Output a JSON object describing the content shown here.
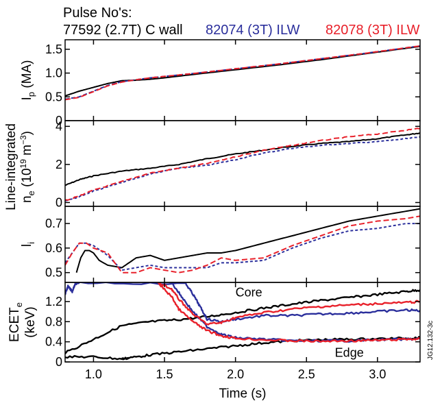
{
  "header": {
    "title": "Pulse No's:",
    "pulses": [
      {
        "label": "77592 (2.7T) C wall",
        "color": "#000000"
      },
      {
        "label": "82074 (3T) ILW",
        "color": "#2b2f9c"
      },
      {
        "label": "82078 (3T) ILW",
        "color": "#e8202a"
      }
    ]
  },
  "watermark": "JG12.132-3c",
  "chart_data": {
    "type": "line",
    "xlabel": "Time (s)",
    "xlim": [
      0.8,
      3.3
    ],
    "xticks": [
      "1.0",
      "1.5",
      "2.0",
      "2.5",
      "3.0"
    ],
    "xtick_values": [
      1.0,
      1.5,
      2.0,
      2.5,
      3.0
    ],
    "panels": [
      {
        "id": "ip",
        "ylabel_main": "I",
        "ylabel_sub": "p",
        "ylabel_unit": " (MA)",
        "ylim": [
          0,
          1.7
        ],
        "yticks": [
          "0",
          "0.5",
          "1.0",
          "1.5"
        ],
        "ytick_values": [
          0,
          0.5,
          1.0,
          1.5
        ],
        "series": [
          {
            "pulse": "77592",
            "color": "#000000",
            "dash": "",
            "x": [
              0.8,
              0.9,
              1.0,
              1.1,
              1.2,
              1.3,
              1.4,
              1.5,
              1.7,
              2.0,
              2.3,
              2.6,
              2.9,
              3.1,
              3.3
            ],
            "y": [
              0.52,
              0.62,
              0.7,
              0.78,
              0.84,
              0.85,
              0.87,
              0.9,
              0.97,
              1.07,
              1.17,
              1.28,
              1.4,
              1.48,
              1.56
            ]
          },
          {
            "pulse": "82074",
            "color": "#2b2f9c",
            "dash": "6,3",
            "x": [
              0.8,
              0.9,
              1.0,
              1.1,
              1.2,
              1.3,
              1.4,
              1.5,
              1.7,
              2.0,
              2.3,
              2.6,
              2.9,
              3.1,
              3.3
            ],
            "y": [
              0.45,
              0.5,
              0.62,
              0.74,
              0.82,
              0.86,
              0.9,
              0.93,
              0.99,
              1.09,
              1.19,
              1.3,
              1.41,
              1.49,
              1.57
            ]
          },
          {
            "pulse": "82078",
            "color": "#e8202a",
            "dash": "8,4",
            "x": [
              0.8,
              0.9,
              1.0,
              1.1,
              1.2,
              1.3,
              1.4,
              1.5,
              1.7,
              2.0,
              2.3,
              2.6,
              2.9,
              3.1,
              3.3
            ],
            "y": [
              0.44,
              0.49,
              0.61,
              0.73,
              0.81,
              0.86,
              0.9,
              0.93,
              0.99,
              1.09,
              1.19,
              1.3,
              1.41,
              1.49,
              1.57
            ]
          }
        ]
      },
      {
        "id": "ne",
        "ylabel_main": "n",
        "ylabel_sub": "e",
        "ylabel_unit": " (10",
        "ylabel_sup": "19",
        "ylabel_unit2": " m",
        "ylabel_sup2": "−3",
        "ylabel_close": ")",
        "ylabel_line1": "Line-integrated",
        "ylim": [
          -0.2,
          4.3
        ],
        "yticks": [
          "0",
          "2",
          "4"
        ],
        "ytick_values": [
          0,
          2,
          4
        ],
        "series": [
          {
            "pulse": "77592",
            "color": "#000000",
            "dash": "",
            "x": [
              0.8,
              0.9,
              1.0,
              1.2,
              1.4,
              1.6,
              1.8,
              2.0,
              2.2,
              2.4,
              2.6,
              2.8,
              3.0,
              3.2,
              3.3
            ],
            "y": [
              0.9,
              1.2,
              1.4,
              1.65,
              1.8,
              2.0,
              2.3,
              2.55,
              2.75,
              2.95,
              3.1,
              3.2,
              3.35,
              3.55,
              3.65
            ]
          },
          {
            "pulse": "82074",
            "color": "#2b2f9c",
            "dash": "4,3",
            "x": [
              0.8,
              0.9,
              1.0,
              1.2,
              1.4,
              1.6,
              1.8,
              2.0,
              2.2,
              2.4,
              2.6,
              2.8,
              3.0,
              3.2,
              3.3
            ],
            "y": [
              0.1,
              0.3,
              0.6,
              1.05,
              1.5,
              1.8,
              1.95,
              2.25,
              2.6,
              2.85,
              3.0,
              3.1,
              3.2,
              3.35,
              3.45
            ]
          },
          {
            "pulse": "82078",
            "color": "#e8202a",
            "dash": "8,4",
            "x": [
              0.8,
              0.9,
              1.0,
              1.2,
              1.4,
              1.6,
              1.8,
              2.0,
              2.2,
              2.4,
              2.6,
              2.8,
              3.0,
              3.2,
              3.3
            ],
            "y": [
              0.1,
              0.35,
              0.65,
              1.1,
              1.55,
              1.8,
              2.05,
              2.4,
              2.75,
              3.0,
              3.25,
              3.45,
              3.6,
              3.8,
              3.9
            ]
          }
        ]
      },
      {
        "id": "li",
        "ylabel_main": "l",
        "ylabel_sub": "i",
        "ylim": [
          0.46,
          0.77
        ],
        "yticks": [
          "0.5",
          "0.6",
          "0.7"
        ],
        "ytick_values": [
          0.5,
          0.6,
          0.7
        ],
        "series": [
          {
            "pulse": "77592",
            "color": "#000000",
            "dash": "",
            "x": [
              0.88,
              0.91,
              0.94,
              0.97,
              1.0,
              1.04,
              1.1,
              1.2,
              1.3,
              1.4,
              1.5,
              1.6,
              1.7,
              1.8,
              1.9,
              2.0,
              2.2,
              2.4,
              2.6,
              2.8,
              3.0,
              3.2,
              3.3
            ],
            "y": [
              0.5,
              0.56,
              0.59,
              0.59,
              0.58,
              0.55,
              0.53,
              0.52,
              0.56,
              0.57,
              0.55,
              0.56,
              0.57,
              0.58,
              0.58,
              0.59,
              0.62,
              0.65,
              0.68,
              0.71,
              0.73,
              0.75,
              0.76
            ]
          },
          {
            "pulse": "82074",
            "color": "#2b2f9c",
            "dash": "4,3",
            "x": [
              0.8,
              0.85,
              0.9,
              0.95,
              1.0,
              1.1,
              1.2,
              1.3,
              1.4,
              1.5,
              1.6,
              1.7,
              1.8,
              1.9,
              2.0,
              2.2,
              2.4,
              2.6,
              2.8,
              3.0,
              3.2,
              3.3
            ],
            "y": [
              0.54,
              0.58,
              0.62,
              0.62,
              0.61,
              0.57,
              0.51,
              0.52,
              0.53,
              0.52,
              0.52,
              0.52,
              0.52,
              0.54,
              0.54,
              0.55,
              0.6,
              0.64,
              0.67,
              0.68,
              0.7,
              0.7
            ]
          },
          {
            "pulse": "82078",
            "color": "#e8202a",
            "dash": "8,4",
            "x": [
              0.8,
              0.85,
              0.9,
              0.95,
              1.0,
              1.1,
              1.2,
              1.3,
              1.4,
              1.5,
              1.6,
              1.7,
              1.8,
              1.9,
              2.0,
              2.2,
              2.4,
              2.6,
              2.8,
              3.0,
              3.2,
              3.3
            ],
            "y": [
              0.53,
              0.58,
              0.62,
              0.62,
              0.6,
              0.58,
              0.5,
              0.5,
              0.52,
              0.51,
              0.5,
              0.51,
              0.53,
              0.56,
              0.55,
              0.56,
              0.61,
              0.65,
              0.69,
              0.71,
              0.72,
              0.73
            ]
          }
        ]
      },
      {
        "id": "ecet",
        "ylabel_main": "ECET",
        "ylabel_sub": "e",
        "ylabel_line2": "(keV)",
        "ylim": [
          0,
          1.58
        ],
        "yticks": [
          "0",
          "0.4",
          "0.8",
          "1.2"
        ],
        "ytick_values": [
          0,
          0.4,
          0.8,
          1.2
        ],
        "annotations": [
          {
            "text": "Core",
            "x": 2.0,
            "y": 1.3
          },
          {
            "text": "Edge",
            "x": 2.7,
            "y": 0.1
          }
        ],
        "series": [
          {
            "pulse": "77592",
            "label": "core",
            "color": "#000000",
            "dash": "",
            "x": [
              0.8,
              1.0,
              1.2,
              1.4,
              1.6,
              1.8,
              2.0,
              2.2,
              2.4,
              2.6,
              2.8,
              3.0,
              3.2,
              3.3
            ],
            "y": [
              0.18,
              0.45,
              0.72,
              0.8,
              0.84,
              0.9,
              0.98,
              1.07,
              1.15,
              1.22,
              1.28,
              1.34,
              1.4,
              1.43
            ]
          },
          {
            "pulse": "77592",
            "label": "edge",
            "color": "#000000",
            "dash": "",
            "x": [
              0.8,
              1.0,
              1.2,
              1.25,
              1.4,
              1.6,
              1.8,
              2.0,
              2.2,
              2.4,
              2.6,
              2.8,
              3.0,
              3.2,
              3.3
            ],
            "y": [
              0.1,
              0.1,
              0.06,
              0.08,
              0.14,
              0.2,
              0.26,
              0.32,
              0.38,
              0.42,
              0.44,
              0.45,
              0.46,
              0.47,
              0.48
            ]
          },
          {
            "pulse": "82074",
            "label": "core",
            "color": "#2b2f9c",
            "dash": "",
            "x": [
              0.8,
              0.82,
              0.85,
              0.87,
              0.9,
              1.65,
              1.7,
              1.75,
              1.8,
              1.9,
              2.0,
              2.2,
              2.4,
              2.6,
              2.8,
              3.0,
              3.2,
              3.3
            ],
            "y": [
              1.35,
              1.5,
              1.4,
              1.55,
              1.58,
              1.55,
              1.35,
              1.1,
              0.85,
              0.8,
              0.85,
              0.92,
              0.92,
              0.95,
              0.97,
              1.0,
              1.03,
              1.02
            ]
          },
          {
            "pulse": "82074",
            "label": "edge",
            "color": "#2b2f9c",
            "dash": "",
            "x": [
              1.55,
              1.62,
              1.7,
              1.8,
              1.9,
              2.0,
              2.2,
              2.4,
              2.6,
              2.8,
              3.0,
              3.2,
              3.3
            ],
            "y": [
              1.58,
              1.3,
              1.0,
              0.7,
              0.55,
              0.48,
              0.45,
              0.42,
              0.42,
              0.42,
              0.44,
              0.45,
              0.46
            ]
          },
          {
            "pulse": "82078",
            "label": "core",
            "color": "#e8202a",
            "dash": "",
            "x": [
              1.45,
              1.55,
              1.6,
              1.7,
              1.8,
              1.9,
              2.0,
              2.2,
              2.4,
              2.6,
              2.8,
              3.0,
              3.2,
              3.3
            ],
            "y": [
              1.58,
              1.45,
              1.25,
              0.95,
              0.75,
              0.78,
              0.88,
              0.98,
              1.05,
              1.1,
              1.13,
              1.16,
              1.18,
              1.2
            ]
          },
          {
            "pulse": "82078",
            "label": "edge",
            "color": "#e8202a",
            "dash": "",
            "x": [
              1.45,
              1.55,
              1.6,
              1.7,
              1.8,
              1.9,
              2.0,
              2.2,
              2.4,
              2.6,
              2.8,
              3.0,
              3.2,
              3.3
            ],
            "y": [
              1.58,
              1.3,
              1.05,
              0.8,
              0.62,
              0.52,
              0.47,
              0.44,
              0.42,
              0.41,
              0.42,
              0.43,
              0.45,
              0.46
            ]
          }
        ]
      }
    ]
  }
}
